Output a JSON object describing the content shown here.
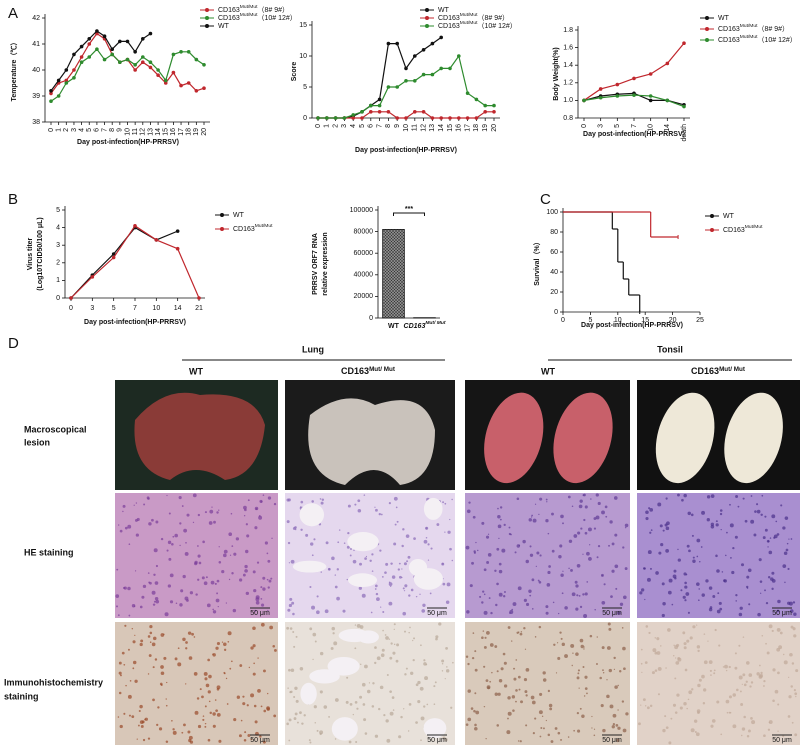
{
  "panel_labels": [
    "A",
    "B",
    "C",
    "D"
  ],
  "chart_data": [
    {
      "type": "line",
      "ylabel": "Temperature（℃）",
      "xlabel": "Day post-infection(HP-PRRSV)",
      "categories": [
        "0",
        "1",
        "2",
        "3",
        "4",
        "5",
        "6",
        "7",
        "8",
        "9",
        "10",
        "11",
        "12",
        "13",
        "14",
        "15",
        "16",
        "17",
        "18",
        "19",
        "20"
      ],
      "ylim": [
        38,
        42
      ],
      "yticks": [
        38,
        39,
        40,
        41,
        42
      ],
      "series": [
        {
          "name": "CD163Mut/Mut（8# 9#）",
          "color": "#c0272d",
          "values": [
            39.1,
            39.5,
            39.6,
            40.0,
            40.5,
            41.0,
            41.4,
            41.2,
            40.6,
            40.3,
            40.4,
            40.0,
            40.3,
            40.1,
            39.8,
            39.5,
            39.9,
            39.4,
            39.5,
            39.2,
            39.3
          ]
        },
        {
          "name": "CD163Mut/Mut（10# 12#）",
          "color": "#2e8b2e",
          "values": [
            38.8,
            39.0,
            39.5,
            39.7,
            40.3,
            40.5,
            40.8,
            40.4,
            40.6,
            40.3,
            40.4,
            40.2,
            40.5,
            40.3,
            40.0,
            39.6,
            40.6,
            40.7,
            40.7,
            40.4,
            40.2
          ]
        },
        {
          "name": "WT",
          "color": "#111111",
          "values": [
            39.2,
            39.6,
            40.0,
            40.6,
            40.9,
            41.2,
            41.5,
            41.3,
            40.8,
            41.1,
            41.1,
            40.7,
            41.2,
            41.4,
            null,
            null,
            null,
            null,
            null,
            null,
            null
          ]
        }
      ]
    },
    {
      "type": "line",
      "ylabel": "Score",
      "xlabel": "Day post-infection(HP-PRRSV)",
      "categories": [
        "0",
        "1",
        "2",
        "3",
        "4",
        "5",
        "6",
        "7",
        "8",
        "9",
        "10",
        "11",
        "12",
        "13",
        "14",
        "15",
        "16",
        "17",
        "18",
        "19",
        "20"
      ],
      "ylim": [
        0,
        15
      ],
      "yticks": [
        0,
        5,
        10,
        15
      ],
      "series": [
        {
          "name": "WT",
          "color": "#111111",
          "values": [
            0,
            0,
            0,
            0,
            0.3,
            1,
            2,
            3,
            12,
            12,
            8,
            10,
            11,
            12,
            13,
            null,
            null,
            null,
            null,
            null,
            null
          ]
        },
        {
          "name": "CD163Mut/Mut（8# 9#）",
          "color": "#c0272d",
          "values": [
            0,
            0,
            0,
            0,
            0,
            0,
            1,
            1,
            1,
            0,
            0,
            1,
            1,
            0,
            0,
            0,
            0,
            0,
            0,
            1,
            1
          ]
        },
        {
          "name": "CD163Mut/Mut（10# 12#）",
          "color": "#2e8b2e",
          "values": [
            0,
            0,
            0,
            0,
            0.5,
            1,
            2,
            2,
            5,
            5,
            6,
            6,
            7,
            7,
            8,
            8,
            10,
            4,
            3,
            2,
            2
          ]
        }
      ]
    },
    {
      "type": "line",
      "ylabel": "Body Weight(%)",
      "xlabel": "Day post-infection(HP-PRRSV)",
      "categories": [
        "0",
        "3",
        "5",
        "7",
        "10",
        "14",
        "death"
      ],
      "ylim": [
        0.8,
        1.8
      ],
      "yticks": [
        0.8,
        {
          "value": 1,
          "label": "1.0"
        },
        1.2,
        1.4,
        1.6,
        1.8
      ],
      "series": [
        {
          "name": "WT",
          "color": "#111111",
          "values": [
            1.0,
            1.05,
            1.07,
            1.08,
            1.0,
            1.0,
            0.95
          ]
        },
        {
          "name": "CD163Mut/Mut（8# 9#）",
          "color": "#c0272d",
          "values": [
            1.0,
            1.13,
            1.18,
            1.25,
            1.3,
            1.42,
            1.65
          ]
        },
        {
          "name": "CD163Mut/Mut（10# 12#）",
          "color": "#2e8b2e",
          "values": [
            1.0,
            1.03,
            1.05,
            1.06,
            1.05,
            1.0,
            0.93
          ]
        }
      ]
    },
    {
      "type": "line",
      "ylabel": [
        "Virus titer",
        "(Log10TCID50/100 μL)"
      ],
      "xlabel": "Day post-infection(HP-PRRSV)",
      "categories": [
        "0",
        "3",
        "5",
        "7",
        "10",
        "14",
        "21"
      ],
      "ylim": [
        0,
        5
      ],
      "yticks": [
        0,
        1,
        2,
        3,
        4,
        5
      ],
      "series": [
        {
          "name": "WT",
          "color": "#111111",
          "values": [
            0,
            1.3,
            2.5,
            4.0,
            3.3,
            3.8,
            null
          ]
        },
        {
          "name": "CD163Mut/Mut",
          "color": "#c0272d",
          "values": [
            0,
            1.2,
            2.3,
            4.1,
            3.3,
            2.8,
            0
          ]
        }
      ]
    },
    {
      "type": "bar",
      "ylabel": [
        "PRRSV ORF7 RNA",
        "relative expression"
      ],
      "annotation": "***",
      "categories": [
        "WT",
        "CD163Mut/ Mut"
      ],
      "values": [
        82000,
        300
      ],
      "color": "#8a8a8a",
      "ylim": [
        0,
        100000
      ],
      "yticks": [
        0,
        20000,
        40000,
        60000,
        80000,
        100000
      ]
    },
    {
      "type": "step",
      "ylabel": "Survival（%）",
      "xlabel": "Day post-infection(HP-PRRSV)",
      "xlim": [
        0,
        25
      ],
      "xticks": [
        0,
        5,
        10,
        15,
        20,
        25
      ],
      "ylim": [
        0,
        100
      ],
      "yticks": [
        0,
        20,
        40,
        60,
        80,
        100
      ],
      "series": [
        {
          "name": "WT",
          "color": "#111111",
          "x": [
            0,
            9,
            10,
            11,
            12,
            14
          ],
          "values": [
            100,
            83,
            50,
            33,
            17,
            0
          ]
        },
        {
          "name": "CD163Mut/Mut",
          "color": "#c0272d",
          "x": [
            0,
            16,
            21
          ],
          "values": [
            100,
            75,
            75
          ]
        }
      ]
    }
  ],
  "panel_d": {
    "groups": [
      "Lung",
      "Tonsil"
    ],
    "columns": [
      "WT",
      "CD163Mut/ Mut",
      "WT",
      "CD163Mut/ Mut"
    ],
    "rows": [
      [
        "Macroscopical",
        "lesion"
      ],
      [
        "HE staining"
      ],
      [
        "Immunohistochemistry",
        "staining"
      ]
    ],
    "scale_bar": "50 μm"
  }
}
